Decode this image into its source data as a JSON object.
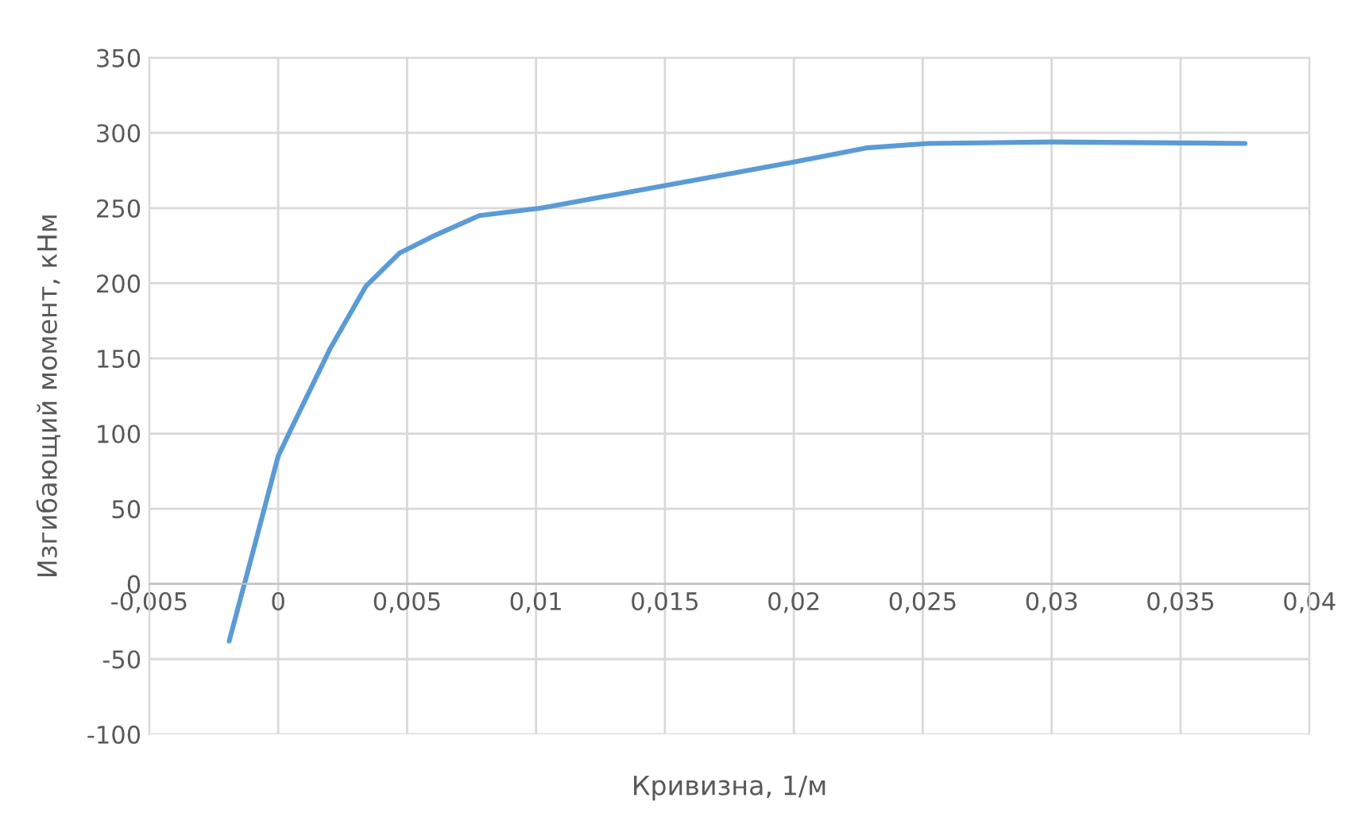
{
  "chart_data": {
    "type": "line",
    "xlabel": "Кривизна, 1/м",
    "ylabel": "Изгибающий момент, кНм",
    "series": [
      {
        "color": "#5b9bd5",
        "x": [
          -0.0019,
          -0.001,
          0.0,
          0.0005,
          0.002,
          0.0034,
          0.0047,
          0.0061,
          0.0078,
          0.0102,
          0.015,
          0.0201,
          0.0228,
          0.0252,
          0.03,
          0.0375
        ],
        "values": [
          -38,
          20,
          85,
          103,
          156,
          198,
          220,
          232,
          245,
          250,
          265,
          281,
          290,
          293,
          294,
          293
        ]
      }
    ],
    "xlim": [
      -0.005,
      0.04
    ],
    "xticks": [
      {
        "value": -0.005,
        "label": "-0,005"
      },
      {
        "value": 0,
        "label": "0"
      },
      {
        "value": 0.005,
        "label": "0,005"
      },
      {
        "value": 0.01,
        "label": "0,01"
      },
      {
        "value": 0.015,
        "label": "0,015"
      },
      {
        "value": 0.02,
        "label": "0,02"
      },
      {
        "value": 0.025,
        "label": "0,025"
      },
      {
        "value": 0.03,
        "label": "0,03"
      },
      {
        "value": 0.035,
        "label": "0,035"
      },
      {
        "value": 0.04,
        "label": "0,04"
      }
    ],
    "ylim": [
      -100,
      350
    ],
    "yticks": [
      -100,
      -50,
      0,
      50,
      100,
      150,
      200,
      250,
      300,
      350
    ],
    "grid": true,
    "marker": "none",
    "line_style": "solid"
  }
}
